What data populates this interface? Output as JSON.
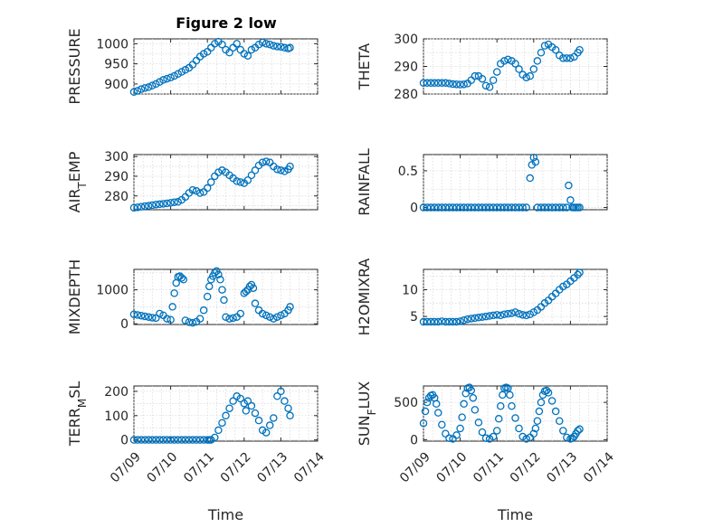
{
  "figure": {
    "title": "Figure 2 low"
  },
  "x_axis": {
    "label": "Time",
    "tick_labels": [
      "07/09",
      "07/10",
      "07/11",
      "07/12",
      "07/13",
      "07/14"
    ],
    "range": [
      0,
      5
    ]
  },
  "colors": {
    "marker": "#0072BD",
    "axis": "#262626",
    "grid": "#d9d9d9"
  },
  "chart_data": [
    {
      "type": "scatter",
      "ylabel": "PRESSURE",
      "ylabel_sub": "",
      "ylabel_rest": "",
      "ylim": [
        875,
        1012
      ],
      "yticks": [
        900,
        950,
        1000
      ],
      "grid": true,
      "x": [
        0.0,
        0.1,
        0.2,
        0.3,
        0.4,
        0.5,
        0.6,
        0.7,
        0.8,
        0.9,
        1.0,
        1.1,
        1.2,
        1.3,
        1.4,
        1.5,
        1.6,
        1.7,
        1.8,
        1.9,
        2.0,
        2.1,
        2.2,
        2.3,
        2.4,
        2.5,
        2.6,
        2.7,
        2.8,
        2.9,
        3.0,
        3.1,
        3.2,
        3.3,
        3.4,
        3.5,
        3.6,
        3.7,
        3.8,
        3.9,
        4.0,
        4.1,
        4.2,
        4.25
      ],
      "y": [
        880,
        883,
        887,
        890,
        892,
        896,
        900,
        905,
        910,
        913,
        916,
        920,
        925,
        930,
        935,
        940,
        948,
        958,
        968,
        975,
        980,
        990,
        1000,
        1005,
        998,
        985,
        978,
        990,
        1000,
        985,
        975,
        970,
        985,
        990,
        998,
        1003,
        1000,
        998,
        995,
        993,
        992,
        990,
        988,
        990
      ]
    },
    {
      "type": "scatter",
      "ylabel": "THETA",
      "ylabel_sub": "",
      "ylabel_rest": "",
      "ylim": [
        280,
        300
      ],
      "yticks": [
        280,
        290,
        300
      ],
      "grid": true,
      "x": [
        0.0,
        0.1,
        0.2,
        0.3,
        0.4,
        0.5,
        0.6,
        0.7,
        0.8,
        0.9,
        1.0,
        1.1,
        1.2,
        1.3,
        1.4,
        1.5,
        1.6,
        1.7,
        1.8,
        1.9,
        2.0,
        2.1,
        2.2,
        2.3,
        2.4,
        2.5,
        2.6,
        2.7,
        2.8,
        2.9,
        3.0,
        3.1,
        3.2,
        3.3,
        3.4,
        3.5,
        3.6,
        3.7,
        3.8,
        3.9,
        4.0,
        4.1,
        4.2,
        4.25
      ],
      "y": [
        284,
        284,
        284,
        284,
        284,
        284,
        284,
        283.8,
        283.6,
        283.5,
        283.4,
        283.5,
        283.8,
        285,
        286.5,
        286.5,
        285.5,
        283,
        282.5,
        285,
        288,
        291,
        292,
        292.5,
        292,
        291,
        289,
        287,
        286,
        286.5,
        289,
        292,
        295,
        297.5,
        298,
        297,
        296,
        294,
        293,
        293,
        293,
        293.5,
        295,
        296
      ]
    },
    {
      "type": "scatter",
      "ylabel": "AIR",
      "ylabel_sub": "T",
      "ylabel_rest": "EMP",
      "ylim": [
        273,
        301
      ],
      "yticks": [
        280,
        290,
        300
      ],
      "grid": true,
      "x": [
        0.0,
        0.1,
        0.2,
        0.3,
        0.4,
        0.5,
        0.6,
        0.7,
        0.8,
        0.9,
        1.0,
        1.1,
        1.2,
        1.3,
        1.4,
        1.5,
        1.6,
        1.7,
        1.8,
        1.9,
        2.0,
        2.1,
        2.2,
        2.3,
        2.4,
        2.5,
        2.6,
        2.7,
        2.8,
        2.9,
        3.0,
        3.1,
        3.2,
        3.3,
        3.4,
        3.5,
        3.6,
        3.7,
        3.8,
        3.9,
        4.0,
        4.1,
        4.2,
        4.25
      ],
      "y": [
        274,
        274.2,
        274.5,
        274.8,
        275,
        275.3,
        275.6,
        275.8,
        276,
        276.2,
        276.5,
        276.8,
        277,
        278,
        279.5,
        281.5,
        283,
        282.5,
        281.5,
        282,
        284,
        287,
        290,
        292,
        293,
        292,
        290.5,
        289,
        287.5,
        287,
        286.5,
        288,
        290.5,
        293,
        295.5,
        297,
        297.5,
        297,
        295,
        293.5,
        293,
        292.5,
        293.5,
        295
      ]
    },
    {
      "type": "scatter",
      "ylabel": "RAINFALL",
      "ylabel_sub": "",
      "ylabel_rest": "",
      "ylim": [
        -0.03,
        0.72
      ],
      "yticks": [
        0,
        0.5
      ],
      "grid": true,
      "x": [
        0.0,
        0.1,
        0.2,
        0.3,
        0.4,
        0.5,
        0.6,
        0.7,
        0.8,
        0.9,
        1.0,
        1.1,
        1.2,
        1.3,
        1.4,
        1.5,
        1.6,
        1.7,
        1.8,
        1.9,
        2.0,
        2.1,
        2.2,
        2.3,
        2.4,
        2.5,
        2.6,
        2.7,
        2.8,
        2.9,
        2.95,
        3.0,
        3.05,
        3.1,
        3.2,
        3.3,
        3.4,
        3.5,
        3.6,
        3.7,
        3.8,
        3.9,
        3.95,
        4.0,
        4.05,
        4.1,
        4.15,
        4.2,
        4.25
      ],
      "y": [
        0,
        0,
        0,
        0,
        0,
        0,
        0,
        0,
        0,
        0,
        0,
        0,
        0,
        0,
        0,
        0,
        0,
        0,
        0,
        0,
        0,
        0,
        0,
        0,
        0,
        0,
        0,
        0,
        0,
        0.4,
        0.58,
        0.68,
        0.62,
        0,
        0,
        0,
        0,
        0,
        0,
        0,
        0,
        0,
        0.3,
        0.1,
        0,
        0,
        0,
        0,
        0
      ]
    },
    {
      "type": "scatter",
      "ylabel": "MIXDEPTH",
      "ylabel_sub": "",
      "ylabel_rest": "",
      "ylim": [
        -20,
        1600
      ],
      "yticks": [
        0,
        1000
      ],
      "grid": true,
      "x": [
        0.0,
        0.1,
        0.2,
        0.3,
        0.4,
        0.5,
        0.6,
        0.7,
        0.8,
        0.9,
        1.0,
        1.05,
        1.1,
        1.15,
        1.2,
        1.25,
        1.3,
        1.35,
        1.4,
        1.5,
        1.6,
        1.7,
        1.8,
        1.9,
        2.0,
        2.05,
        2.1,
        2.15,
        2.2,
        2.25,
        2.3,
        2.35,
        2.4,
        2.45,
        2.5,
        2.6,
        2.7,
        2.8,
        2.9,
        3.0,
        3.05,
        3.1,
        3.15,
        3.2,
        3.25,
        3.3,
        3.4,
        3.5,
        3.6,
        3.7,
        3.8,
        3.9,
        4.0,
        4.1,
        4.2,
        4.25
      ],
      "y": [
        280,
        260,
        240,
        220,
        200,
        180,
        170,
        300,
        250,
        150,
        120,
        500,
        900,
        1200,
        1380,
        1400,
        1350,
        1300,
        100,
        50,
        30,
        60,
        150,
        400,
        800,
        1100,
        1300,
        1400,
        1500,
        1550,
        1450,
        1300,
        1000,
        700,
        200,
        150,
        170,
        200,
        300,
        900,
        950,
        1000,
        1100,
        1150,
        1050,
        600,
        400,
        300,
        250,
        200,
        150,
        200,
        250,
        300,
        400,
        500
      ]
    },
    {
      "type": "scatter",
      "ylabel": "H2OMIXRA",
      "ylabel_sub": "",
      "ylabel_rest": "",
      "ylim": [
        3.5,
        13.8
      ],
      "yticks": [
        5,
        10
      ],
      "grid": true,
      "x": [
        0.0,
        0.1,
        0.2,
        0.3,
        0.4,
        0.5,
        0.6,
        0.7,
        0.8,
        0.9,
        1.0,
        1.1,
        1.2,
        1.3,
        1.4,
        1.5,
        1.6,
        1.7,
        1.8,
        1.9,
        2.0,
        2.1,
        2.2,
        2.3,
        2.4,
        2.5,
        2.6,
        2.7,
        2.8,
        2.9,
        3.0,
        3.1,
        3.2,
        3.3,
        3.4,
        3.5,
        3.6,
        3.7,
        3.8,
        3.9,
        4.0,
        4.1,
        4.2,
        4.25
      ],
      "y": [
        4.0,
        4.0,
        4.0,
        4.0,
        4.0,
        4.1,
        4.0,
        4.0,
        4.0,
        4.0,
        4.1,
        4.3,
        4.5,
        4.6,
        4.7,
        4.8,
        4.9,
        5.0,
        5.1,
        5.2,
        5.3,
        5.2,
        5.4,
        5.5,
        5.6,
        5.8,
        5.5,
        5.3,
        5.2,
        5.4,
        5.8,
        6.2,
        6.8,
        7.5,
        8.0,
        8.7,
        9.3,
        10.0,
        10.6,
        11.0,
        11.6,
        12.2,
        12.8,
        13.2
      ]
    },
    {
      "type": "scatter",
      "ylabel": "TERR",
      "ylabel_sub": "M",
      "ylabel_rest": "SL",
      "ylim": [
        -5,
        222
      ],
      "yticks": [
        0,
        100,
        200
      ],
      "grid": true,
      "x": [
        0.0,
        0.1,
        0.2,
        0.3,
        0.4,
        0.5,
        0.6,
        0.7,
        0.8,
        0.9,
        1.0,
        1.1,
        1.2,
        1.3,
        1.4,
        1.5,
        1.6,
        1.7,
        1.8,
        1.9,
        2.0,
        2.05,
        2.1,
        2.2,
        2.3,
        2.4,
        2.5,
        2.6,
        2.7,
        2.8,
        2.9,
        3.0,
        3.05,
        3.1,
        3.2,
        3.3,
        3.4,
        3.5,
        3.6,
        3.7,
        3.8,
        3.9,
        4.0,
        4.1,
        4.2,
        4.25
      ],
      "y": [
        0,
        0,
        0,
        0,
        0,
        0,
        0,
        0,
        0,
        0,
        0,
        0,
        0,
        0,
        0,
        0,
        0,
        0,
        0,
        0,
        0,
        0,
        0,
        10,
        40,
        70,
        100,
        130,
        160,
        180,
        170,
        150,
        120,
        160,
        140,
        110,
        80,
        40,
        30,
        60,
        90,
        180,
        200,
        160,
        130,
        100
      ]
    },
    {
      "type": "scatter",
      "ylabel": "SUN",
      "ylabel_sub": "F",
      "ylabel_rest": "LUX",
      "ylim": [
        -20,
        720
      ],
      "yticks": [
        0,
        500
      ],
      "grid": true,
      "x": [
        0.0,
        0.05,
        0.1,
        0.15,
        0.2,
        0.25,
        0.3,
        0.35,
        0.4,
        0.5,
        0.6,
        0.7,
        0.8,
        0.9,
        1.0,
        1.05,
        1.1,
        1.15,
        1.2,
        1.25,
        1.3,
        1.35,
        1.4,
        1.5,
        1.6,
        1.7,
        1.8,
        1.9,
        2.0,
        2.05,
        2.1,
        2.15,
        2.2,
        2.25,
        2.3,
        2.35,
        2.4,
        2.5,
        2.6,
        2.7,
        2.8,
        2.9,
        3.0,
        3.05,
        3.1,
        3.15,
        3.2,
        3.25,
        3.3,
        3.35,
        3.4,
        3.5,
        3.6,
        3.7,
        3.8,
        3.9,
        4.0,
        4.05,
        4.1,
        4.15,
        4.2,
        4.25
      ],
      "y": [
        220,
        380,
        500,
        560,
        590,
        600,
        560,
        480,
        360,
        200,
        80,
        20,
        10,
        60,
        150,
        300,
        480,
        620,
        690,
        700,
        660,
        560,
        400,
        230,
        100,
        20,
        10,
        40,
        120,
        280,
        450,
        600,
        690,
        700,
        690,
        600,
        450,
        290,
        150,
        40,
        10,
        30,
        80,
        150,
        250,
        380,
        500,
        600,
        650,
        660,
        630,
        520,
        380,
        250,
        120,
        30,
        10,
        20,
        40,
        80,
        120,
        140
      ]
    }
  ]
}
